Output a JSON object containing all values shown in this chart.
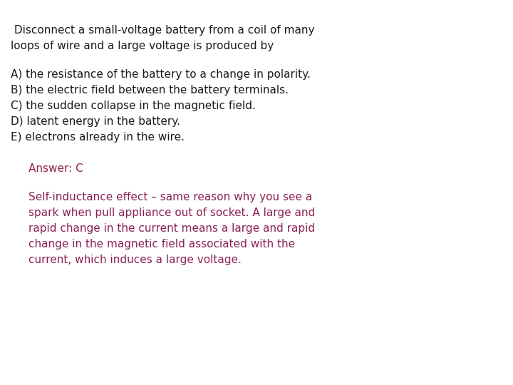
{
  "background_color": "#ffffff",
  "question_text_line1": " Disconnect a small-voltage battery from a coil of many",
  "question_text_line2": "loops of wire and a large voltage is produced by",
  "options": [
    "A) the resistance of the battery to a change in polarity.",
    "B) the electric field between the battery terminals.",
    "C) the sudden collapse in the magnetic field.",
    "D) latent energy in the battery.",
    "E) electrons already in the wire."
  ],
  "answer_label": "Answer: C",
  "explanation_lines": [
    "Self-inductance effect – same reason why you see a",
    "spark when pull appliance out of socket. A large and",
    "rapid change in the current means a large and rapid",
    "change in the magnetic field associated with the",
    "current, which induces a large voltage."
  ],
  "question_color": "#1a1a1a",
  "option_color": "#1a1a1a",
  "answer_color": "#8b2252",
  "explanation_color": "#8b2252",
  "question_fontsize": 11.0,
  "option_fontsize": 11.0,
  "answer_fontsize": 11.0,
  "explanation_fontsize": 11.0,
  "figwidth": 7.2,
  "figheight": 5.4,
  "dpi": 100
}
